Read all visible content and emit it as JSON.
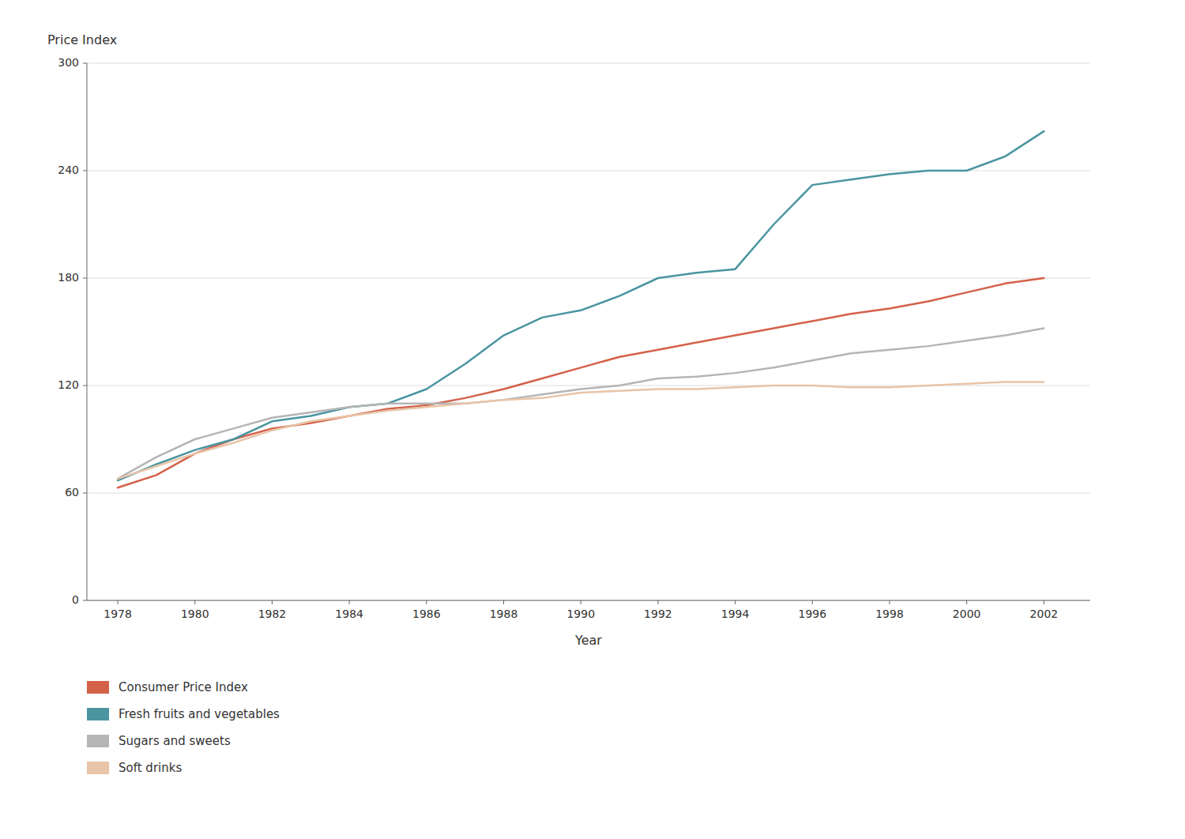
{
  "chart_data": {
    "type": "line",
    "y_label": "Price Index",
    "x_label": "Year",
    "x": [
      1978,
      1979,
      1980,
      1981,
      1982,
      1983,
      1984,
      1985,
      1986,
      1987,
      1988,
      1989,
      1990,
      1991,
      1992,
      1993,
      1994,
      1995,
      1996,
      1997,
      1998,
      1999,
      2000,
      2001,
      2002
    ],
    "series": [
      {
        "name": "Consumer Price Index",
        "color": "#d4614a",
        "values": [
          63,
          70,
          82,
          90,
          96,
          99,
          103,
          107,
          109,
          113,
          118,
          124,
          130,
          136,
          140,
          144,
          148,
          152,
          156,
          160,
          163,
          167,
          172,
          177,
          180
        ]
      },
      {
        "name": "Fresh fruits and vegetables",
        "color": "#4a95a0",
        "values": [
          67,
          76,
          84,
          90,
          100,
          103,
          108,
          110,
          118,
          132,
          148,
          158,
          162,
          170,
          180,
          183,
          185,
          210,
          232,
          235,
          238,
          240,
          240,
          248,
          262
        ]
      },
      {
        "name": "Sugars and sweets",
        "color": "#b5b5b5",
        "values": [
          68,
          80,
          90,
          96,
          102,
          105,
          108,
          110,
          110,
          110,
          112,
          115,
          118,
          120,
          124,
          125,
          127,
          130,
          134,
          138,
          140,
          142,
          145,
          148,
          152
        ]
      },
      {
        "name": "Soft drinks",
        "color": "#e8c4a8",
        "values": [
          68,
          75,
          82,
          88,
          95,
          100,
          103,
          106,
          108,
          110,
          112,
          113,
          116,
          117,
          118,
          118,
          119,
          120,
          120,
          119,
          119,
          120,
          121,
          122,
          122
        ]
      }
    ],
    "xlim": [
      1977.2,
      2003.2
    ],
    "xticks": [
      1978,
      1980,
      1982,
      1984,
      1986,
      1988,
      1990,
      1992,
      1994,
      1996,
      1998,
      2000,
      2002
    ],
    "ylim": [
      0,
      300
    ],
    "yticks": [
      0,
      60,
      120,
      180,
      240,
      300
    ],
    "grid": true,
    "legend": "bottom"
  }
}
